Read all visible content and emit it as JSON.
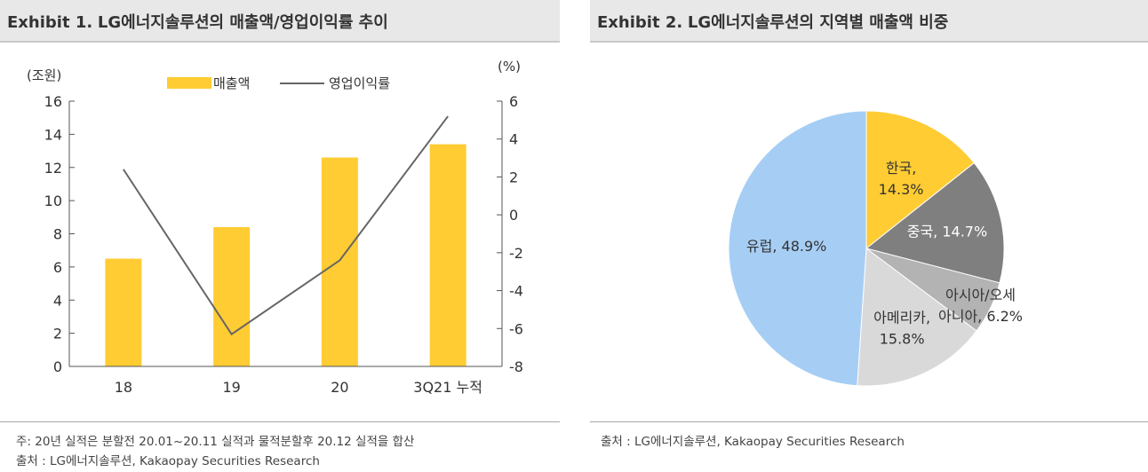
{
  "exhibit1": {
    "prefix": "Exhibit 1.",
    "title": "LG에너지솔루션의 매출액/영업이익률 추이",
    "note": "주: 20년 실적은 분할전 20.01~20.11 실적과 물적분할후 20.12 실적을 합산",
    "source": "출처 : LG에너지솔루션, Kakaopay Securities Research"
  },
  "exhibit2": {
    "prefix": "Exhibit 2.",
    "title": "LG에너지솔루션의 지역별 매출액 비중",
    "source": "출처 : LG에너지솔루션, Kakaopay Securities Research"
  },
  "colors": {
    "bar": "#FFCC33",
    "line": "#666666",
    "header_bg": "#e8e8e8"
  },
  "chart_data": [
    {
      "type": "bar",
      "categories": [
        "18",
        "19",
        "20",
        "3Q21 누적"
      ],
      "series": [
        {
          "name": "매출액",
          "type": "bar",
          "axis": "left",
          "color": "#FFCC33",
          "values": [
            6.5,
            8.4,
            12.6,
            13.4
          ]
        },
        {
          "name": "영업이익률",
          "type": "line",
          "axis": "right",
          "color": "#666666",
          "values": [
            2.4,
            -6.3,
            -2.4,
            5.2
          ]
        }
      ],
      "y_left": {
        "label": "(조원)",
        "ticks": [
          "16",
          "14",
          "12",
          "10",
          "8",
          "6",
          "4",
          "2",
          "0"
        ],
        "lim": [
          0,
          16
        ]
      },
      "y_right": {
        "label": "(%)",
        "ticks": [
          "6",
          "4",
          "2",
          "0",
          "-2",
          "-4",
          "-6",
          "-8"
        ],
        "lim": [
          -8,
          6
        ]
      },
      "legend": [
        "매출액",
        "영업이익률"
      ]
    },
    {
      "type": "pie",
      "slices": [
        {
          "label": "한국,",
          "value_label": "14.3%",
          "value": 14.3,
          "color": "#FFCC33",
          "text_color": "#333333"
        },
        {
          "label": "중국,",
          "value_label": "14.7%",
          "value": 14.7,
          "color": "#7f7f7f",
          "text_color": "#ffffff"
        },
        {
          "label": "아시아/오세",
          "value_label": "아니아, 6.2%",
          "value": 6.2,
          "color": "#b3b3b3",
          "text_color": "#333333"
        },
        {
          "label": "아메리카,",
          "value_label": "15.8%",
          "value": 15.8,
          "color": "#d9d9d9",
          "text_color": "#333333"
        },
        {
          "label": "유럽,",
          "value_label": "48.9%",
          "value": 48.9,
          "color": "#a6cef5",
          "text_color": "#333333"
        }
      ]
    }
  ]
}
